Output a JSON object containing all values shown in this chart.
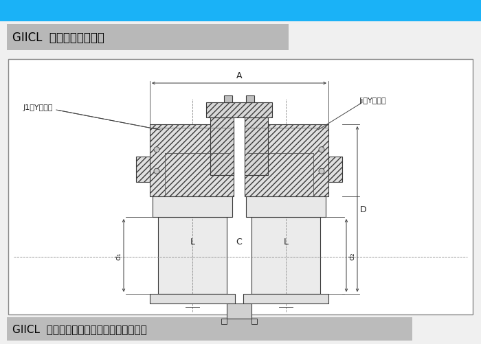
{
  "bg_color": "#f0f0f0",
  "top_bar_color": "#1ab2f7",
  "header1_bg": "#b8b8b8",
  "header1_text": "GIICL  型鼓形齿式联轴器",
  "header2_bg": "#bbbbbb",
  "header2_text": "GIICL  鼓形齿式联轴器基本参数与主要尺寸",
  "diagram_bg": "#ffffff",
  "line_color": "#3a3a3a",
  "label_left": "J1，Y型轴孔",
  "label_right": "Ji，Y型轴孔",
  "label_A": "A",
  "label_L_left": "L",
  "label_C": "C",
  "label_L_right": "L",
  "label_d1": "d₁",
  "label_d2": "d₂",
  "label_D": "D"
}
